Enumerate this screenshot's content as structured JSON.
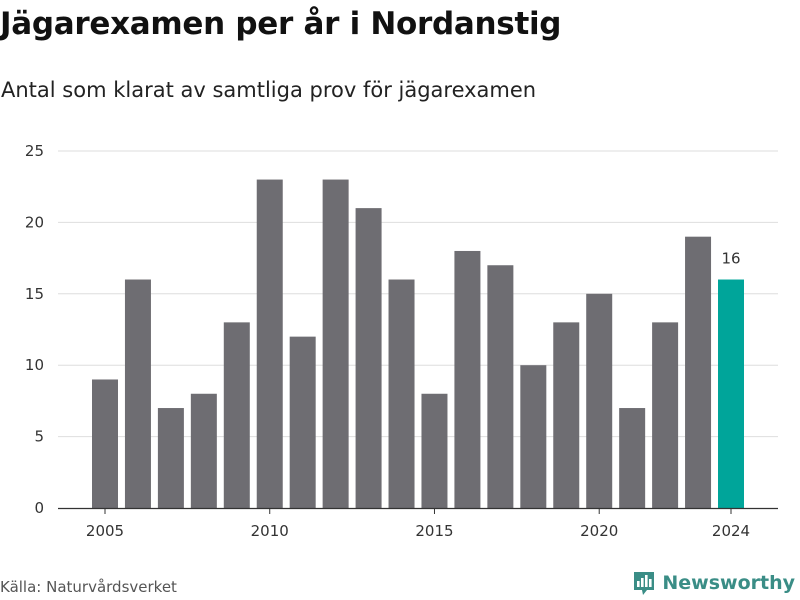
{
  "title": "Jägarexamen per år i Nordanstig",
  "subtitle": "Antal som klarat av samtliga prov för jägarexamen",
  "source": "Källa: Naturvårdsverket",
  "brand": {
    "name": "Newsworthy",
    "icon": "newsworthy-logo-icon",
    "color": "#3a8d86"
  },
  "chart_data": {
    "type": "bar",
    "title": "Jägarexamen per år i Nordanstig",
    "subtitle": "Antal som klarat av samtliga prov för jägarexamen",
    "xlabel": "",
    "ylabel": "",
    "categories": [
      2005,
      2006,
      2007,
      2008,
      2009,
      2010,
      2011,
      2012,
      2013,
      2014,
      2015,
      2016,
      2017,
      2018,
      2019,
      2020,
      2021,
      2022,
      2023,
      2024
    ],
    "values": [
      9,
      16,
      7,
      8,
      13,
      23,
      12,
      23,
      21,
      16,
      8,
      18,
      17,
      10,
      13,
      15,
      7,
      13,
      19,
      16
    ],
    "ylim": [
      0,
      25
    ],
    "yticks": [
      0,
      5,
      10,
      15,
      20,
      25
    ],
    "xtick_labels": [
      "2005",
      "2010",
      "2015",
      "2020",
      "2024"
    ],
    "data_labels": [
      {
        "category": 2024,
        "text": "16"
      }
    ],
    "highlight": {
      "category": 2024
    },
    "colors": {
      "bar": "#6e6d72",
      "highlight": "#00a59a",
      "grid": "#dedede",
      "axis": "#333333"
    },
    "grid": true,
    "legend": "none"
  }
}
